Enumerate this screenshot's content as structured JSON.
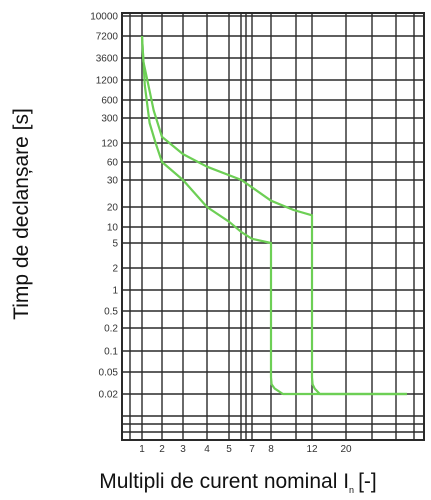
{
  "chart_data": {
    "type": "line",
    "title": "",
    "xlabel": "Multipli de curent nominal I",
    "xlabel_subscript": "n",
    "xlabel_suffix": "[-]",
    "ylabel": "Timp de declanșare [s]",
    "y_scale": "log",
    "x_scale": "log",
    "grid": true,
    "legend": "none",
    "y_ticks": [
      "10000",
      "7200",
      "3600",
      "1200",
      "600",
      "300",
      "120",
      "60",
      "30",
      "20",
      "10",
      "5",
      "2",
      "1",
      "0.5",
      "0.2",
      "0.1",
      "0.05",
      "0.02"
    ],
    "x_ticks": [
      "1",
      "2",
      "3",
      "4",
      "5",
      "7",
      "8",
      "12",
      "20"
    ],
    "curve_color": "#6dcf55",
    "grid_color": "#2a2a2a",
    "series": [
      {
        "x": [
          1.0,
          1.1,
          1.3,
          1.6,
          2.0,
          3.0,
          4.0,
          5.0,
          6.0,
          7.0,
          8.0,
          8.0,
          8.05,
          8.3,
          9.0,
          12.0,
          20.0,
          50.0
        ],
        "y": [
          7200,
          1000,
          250,
          120,
          60,
          30,
          20,
          12,
          8,
          6,
          5,
          0.04,
          0.03,
          0.025,
          0.02,
          0.02,
          0.02,
          0.02
        ]
      },
      {
        "x": [
          1.0,
          1.05,
          1.2,
          1.5,
          2.0,
          3.0,
          4.0,
          6.0,
          8.0,
          10.0,
          12.0,
          12.0,
          12.1,
          12.5,
          13.5,
          20.0,
          50.0
        ],
        "y": [
          7200,
          3000,
          1200,
          400,
          150,
          80,
          50,
          30,
          22,
          18,
          15,
          0.04,
          0.03,
          0.025,
          0.02,
          0.02,
          0.02
        ]
      }
    ]
  }
}
